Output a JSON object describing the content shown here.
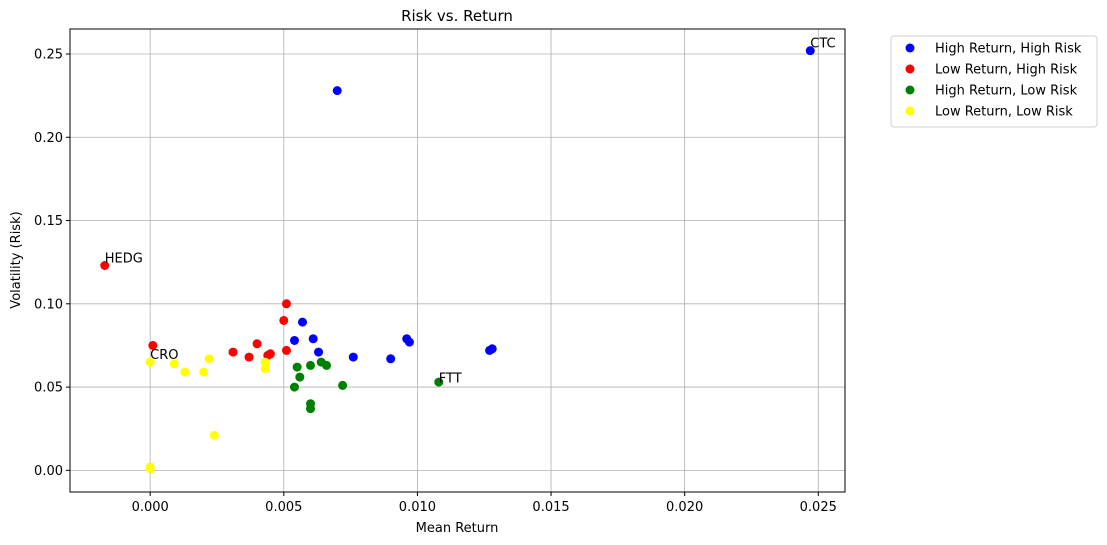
{
  "chart_data": {
    "type": "scatter",
    "title": "Risk vs. Return",
    "xlabel": "Mean Return",
    "ylabel": "Volatility (Risk)",
    "xlim": [
      -0.003,
      0.026
    ],
    "ylim": [
      -0.013,
      0.265
    ],
    "xticks": [
      0.0,
      0.005,
      0.01,
      0.015,
      0.02,
      0.025
    ],
    "xtick_labels": [
      "0.000",
      "0.005",
      "0.010",
      "0.015",
      "0.020",
      "0.025"
    ],
    "yticks": [
      0.0,
      0.05,
      0.1,
      0.15,
      0.2,
      0.25
    ],
    "ytick_labels": [
      "0.00",
      "0.05",
      "0.10",
      "0.15",
      "0.20",
      "0.25"
    ],
    "grid": true,
    "legend_position": "outside-top-right",
    "series": [
      {
        "name": "High Return, High Risk",
        "color": "#0000ff",
        "points": [
          [
            0.0247,
            0.252
          ],
          [
            0.007,
            0.228
          ],
          [
            0.0057,
            0.089
          ],
          [
            0.0054,
            0.078
          ],
          [
            0.0061,
            0.079
          ],
          [
            0.0063,
            0.071
          ],
          [
            0.0076,
            0.068
          ],
          [
            0.009,
            0.067
          ],
          [
            0.0096,
            0.079
          ],
          [
            0.0097,
            0.077
          ],
          [
            0.0127,
            0.072
          ],
          [
            0.0128,
            0.073
          ]
        ]
      },
      {
        "name": "Low Return, High Risk",
        "color": "#ff0000",
        "points": [
          [
            -0.0017,
            0.123
          ],
          [
            0.0001,
            0.075
          ],
          [
            0.0031,
            0.071
          ],
          [
            0.0037,
            0.068
          ],
          [
            0.004,
            0.076
          ],
          [
            0.0044,
            0.069
          ],
          [
            0.0045,
            0.07
          ],
          [
            0.005,
            0.09
          ],
          [
            0.0051,
            0.1
          ],
          [
            0.0051,
            0.072
          ]
        ]
      },
      {
        "name": "High Return, Low Risk",
        "color": "#008000",
        "points": [
          [
            0.0054,
            0.05
          ],
          [
            0.0055,
            0.062
          ],
          [
            0.0056,
            0.056
          ],
          [
            0.006,
            0.063
          ],
          [
            0.006,
            0.04
          ],
          [
            0.006,
            0.037
          ],
          [
            0.0064,
            0.065
          ],
          [
            0.0066,
            0.063
          ],
          [
            0.0072,
            0.051
          ],
          [
            0.0108,
            0.053
          ]
        ]
      },
      {
        "name": "Low Return, Low Risk",
        "color": "#ffff00",
        "points": [
          [
            0.0,
            0.065
          ],
          [
            0.0009,
            0.064
          ],
          [
            0.0013,
            0.059
          ],
          [
            0.002,
            0.059
          ],
          [
            0.0022,
            0.067
          ],
          [
            0.0024,
            0.021
          ],
          [
            0.0043,
            0.065
          ],
          [
            0.0043,
            0.061
          ],
          [
            0.0,
            0.002
          ],
          [
            0.0,
            0.001
          ]
        ]
      }
    ],
    "annotations": [
      {
        "text": "CTC",
        "x": 0.0247,
        "y": 0.252
      },
      {
        "text": "HEDG",
        "x": -0.0017,
        "y": 0.123
      },
      {
        "text": "CRO",
        "x": 0.0,
        "y": 0.065
      },
      {
        "text": "FTT",
        "x": 0.0108,
        "y": 0.051
      }
    ]
  }
}
